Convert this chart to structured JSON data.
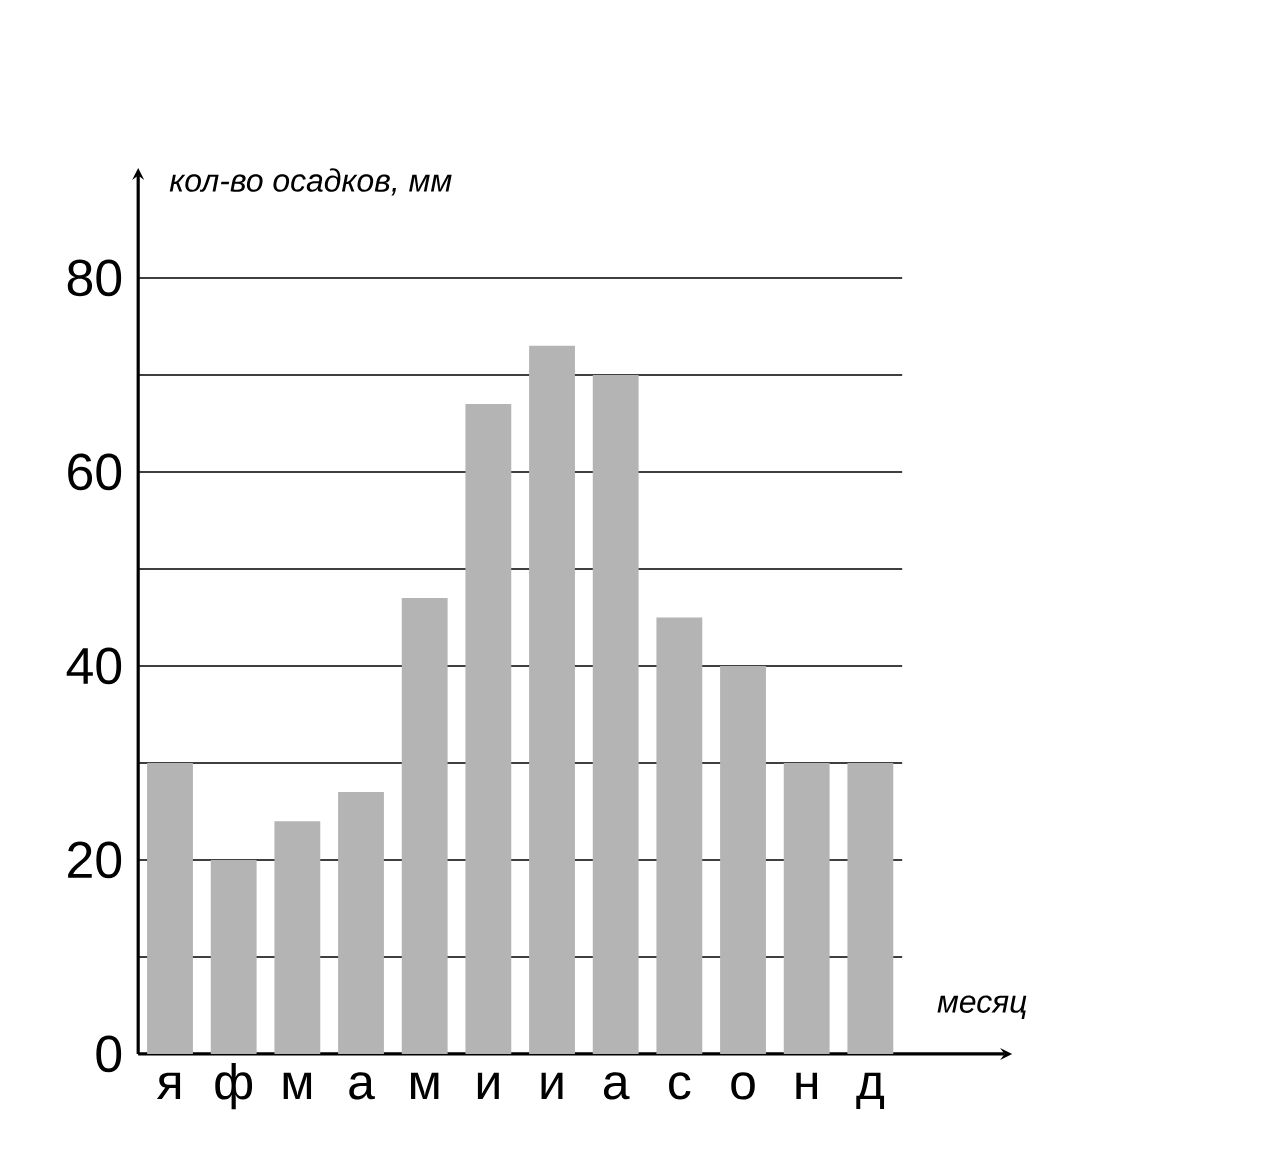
{
  "chart_data": {
    "type": "bar",
    "xlabel": "месяц",
    "ylabel": "кол-во осадков, мм",
    "categories": [
      "я",
      "ф",
      "м",
      "а",
      "м",
      "и",
      "и",
      "а",
      "с",
      "о",
      "н",
      "д"
    ],
    "values": [
      30,
      20,
      24,
      27,
      47,
      67,
      73,
      70,
      45,
      40,
      30,
      30
    ],
    "color": "#b4b4b4",
    "ylim": [
      0,
      80
    ],
    "yticks": [
      0,
      {
        "value": 10,
        "label": null
      },
      20,
      {
        "value": 30,
        "label": null
      },
      40,
      {
        "value": 50,
        "label": null
      },
      60,
      {
        "value": 70,
        "label": null
      },
      80
    ],
    "grid": "y"
  }
}
